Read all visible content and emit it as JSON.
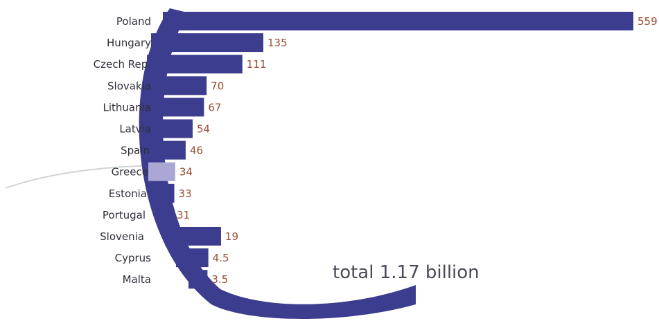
{
  "chart_data": {
    "type": "bar",
    "orientation": "horizontal",
    "categories": [
      "Poland",
      "Hungary",
      "Czech Rep.",
      "Slovakia",
      "Lithuania",
      "Latvia",
      "Spain",
      "Greece",
      "Estonia",
      "Portugal",
      "Slovenia",
      "Cyprus",
      "Malta"
    ],
    "values": [
      559,
      135,
      111,
      70,
      67,
      54,
      46,
      34,
      33,
      31,
      19,
      4.5,
      3.5
    ],
    "value_labels": [
      "559",
      "135",
      "111",
      "70",
      "67",
      "54",
      "46",
      "34",
      "33",
      "31",
      "19",
      "4.5",
      "3.5"
    ],
    "total_label": "total 1.17 billion",
    "grid": false,
    "legend": "none",
    "colors": {
      "bar": "#3d3d8f",
      "bar_highlight": "#a9a7d3",
      "value_text": "#9a4d33",
      "label_text": "#2f2f3a",
      "arc": "#3d3d8f"
    },
    "highlight_category": "Greece"
  }
}
